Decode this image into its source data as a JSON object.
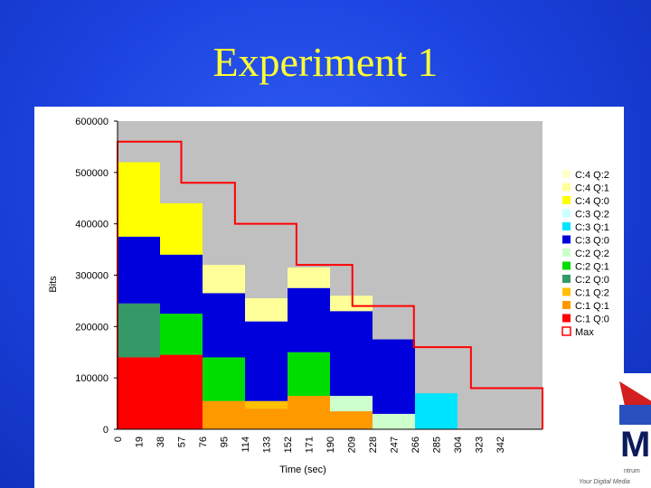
{
  "slide": {
    "title": "Experiment 1"
  },
  "logo": {
    "letter": "M",
    "caption_line1": "ntrum",
    "caption_line2": "Your Digital Media"
  },
  "colors": {
    "background": "#1c43e0",
    "title": "#ffff33",
    "plot_area": "#c0c0c0"
  },
  "chart_data": {
    "type": "area",
    "title": "",
    "xlabel": "Time (sec)",
    "ylabel": "Bits",
    "ylim": [
      0,
      600000
    ],
    "xlim": [
      0,
      380
    ],
    "yticks": [
      0,
      100000,
      200000,
      300000,
      400000,
      500000,
      600000
    ],
    "ytick_labels": [
      "0",
      "100000",
      "200000",
      "300000",
      "400000",
      "500000",
      "600000"
    ],
    "xticks": [
      "0",
      "19",
      "38",
      "57",
      "76",
      "95",
      "114",
      "133",
      "152",
      "171",
      "190",
      "209",
      "228",
      "247",
      "266",
      "285",
      "304",
      "323",
      "342"
    ],
    "grid": false,
    "legend_position": "right",
    "segments": [
      0,
      38,
      76,
      114,
      152,
      190,
      228,
      266,
      304,
      342,
      380
    ],
    "series": [
      {
        "name": "C:1 Q:0",
        "color": "#ff0000",
        "values": [
          140000,
          145000,
          0,
          0,
          0,
          0,
          0,
          0,
          0,
          0
        ]
      },
      {
        "name": "C:1 Q:1",
        "color": "#ff9900",
        "values": [
          0,
          0,
          55000,
          40000,
          65000,
          35000,
          0,
          0,
          0,
          0
        ]
      },
      {
        "name": "C:1 Q:2",
        "color": "#ffc000",
        "values": [
          0,
          0,
          0,
          15000,
          0,
          0,
          0,
          0,
          0,
          0
        ]
      },
      {
        "name": "C:2 Q:0",
        "color": "#339966",
        "values": [
          105000,
          0,
          0,
          0,
          0,
          0,
          0,
          0,
          0,
          0
        ]
      },
      {
        "name": "C:2 Q:1",
        "color": "#00dd00",
        "values": [
          0,
          80000,
          85000,
          0,
          85000,
          0,
          0,
          0,
          0,
          0
        ]
      },
      {
        "name": "C:2 Q:2",
        "color": "#ccffcc",
        "values": [
          0,
          0,
          0,
          0,
          0,
          30000,
          30000,
          0,
          0,
          0
        ]
      },
      {
        "name": "C:3 Q:0",
        "color": "#0000dd",
        "values": [
          130000,
          115000,
          125000,
          155000,
          125000,
          165000,
          145000,
          0,
          0,
          0
        ]
      },
      {
        "name": "C:3 Q:1",
        "color": "#00e5ff",
        "values": [
          0,
          0,
          0,
          0,
          0,
          0,
          0,
          70000,
          0,
          0
        ]
      },
      {
        "name": "C:3 Q:2",
        "color": "#ccffff",
        "values": [
          0,
          0,
          0,
          0,
          0,
          0,
          0,
          0,
          0,
          0
        ]
      },
      {
        "name": "C:4 Q:0",
        "color": "#ffff00",
        "values": [
          145000,
          100000,
          0,
          0,
          0,
          0,
          0,
          0,
          0,
          0
        ]
      },
      {
        "name": "C:4 Q:1",
        "color": "#ffff99",
        "values": [
          0,
          0,
          55000,
          45000,
          40000,
          30000,
          0,
          0,
          0,
          0
        ]
      },
      {
        "name": "C:4 Q:2",
        "color": "#ffffcc",
        "values": [
          0,
          0,
          0,
          0,
          0,
          0,
          0,
          0,
          0,
          0
        ]
      }
    ],
    "max_line": {
      "name": "Max",
      "color": "#ff0000",
      "steps": [
        {
          "x0": 0,
          "x1": 57,
          "y": 560000
        },
        {
          "x0": 57,
          "x1": 105,
          "y": 480000
        },
        {
          "x0": 105,
          "x1": 160,
          "y": 400000
        },
        {
          "x0": 160,
          "x1": 210,
          "y": 320000
        },
        {
          "x0": 210,
          "x1": 265,
          "y": 240000
        },
        {
          "x0": 265,
          "x1": 316,
          "y": 160000
        },
        {
          "x0": 316,
          "x1": 380,
          "y": 80000
        }
      ]
    },
    "legend_order": [
      "C:4 Q:2",
      "C:4 Q:1",
      "C:4 Q:0",
      "C:3 Q:2",
      "C:3 Q:1",
      "C:3 Q:0",
      "C:2 Q:2",
      "C:2 Q:1",
      "C:2 Q:0",
      "C:1 Q:2",
      "C:1 Q:1",
      "C:1 Q:0",
      "Max"
    ]
  }
}
